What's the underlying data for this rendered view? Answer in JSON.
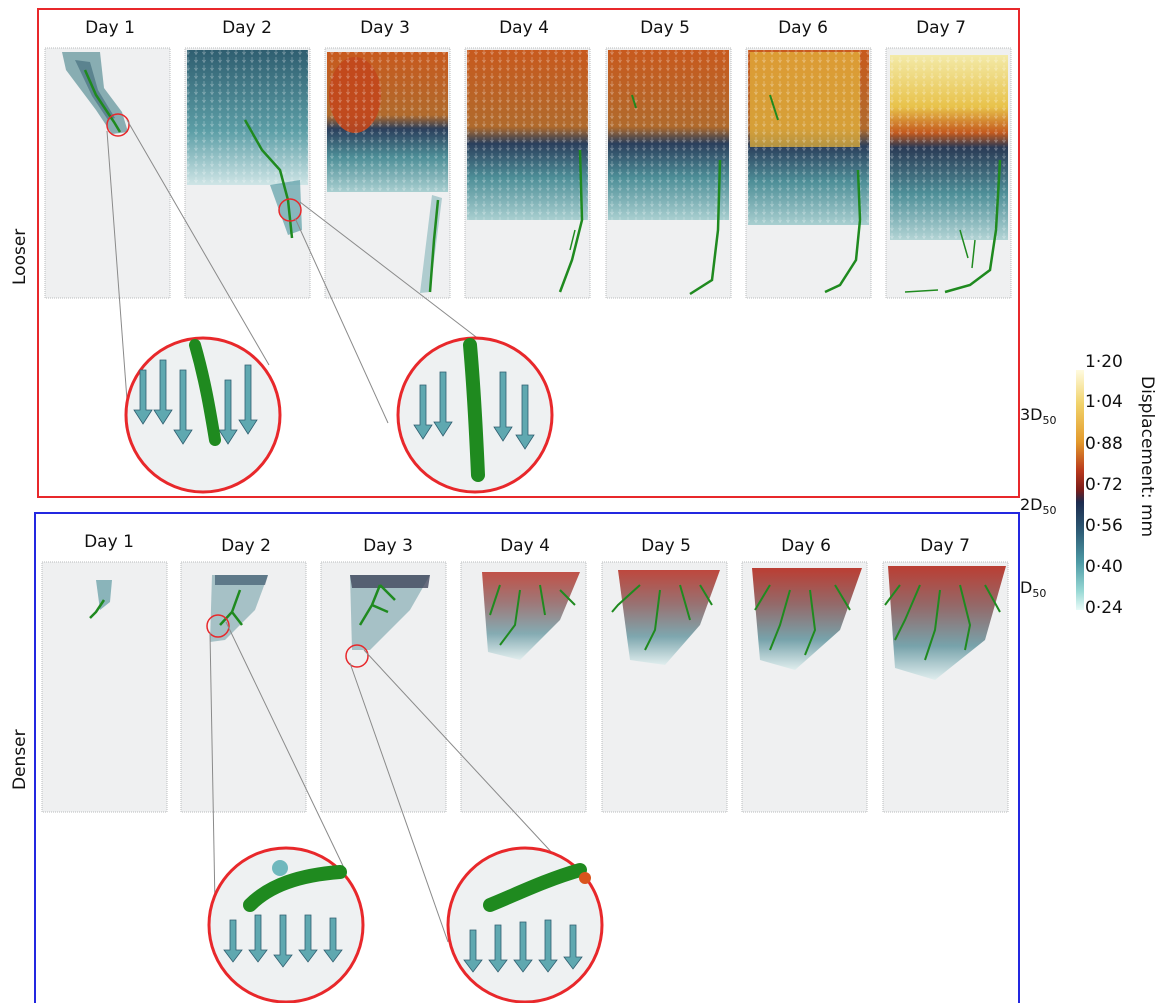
{
  "rows": [
    {
      "label": "Looser",
      "frame_color": "#e8282b"
    },
    {
      "label": "Denser",
      "frame_color": "#2328e0"
    }
  ],
  "days": [
    "Day 1",
    "Day 2",
    "Day 3",
    "Day 4",
    "Day 5",
    "Day 6",
    "Day 7"
  ],
  "colorbar": {
    "title": "Displacement: mm",
    "ticks": [
      "1·20",
      "1·04",
      "0·88",
      "0·72",
      "0·56",
      "0·40",
      "0·24"
    ],
    "reference_labels": [
      {
        "base": "3D",
        "sub": "50"
      },
      {
        "base": "2D",
        "sub": "50"
      },
      {
        "base": "D",
        "sub": "50"
      }
    ]
  },
  "colors": {
    "root": "#1f8a1f",
    "callout": "#e8282b",
    "panel_bg": "#eff0f1",
    "low": "#4d9aa5",
    "mid": "#1c2b4e",
    "high": "#d9731d",
    "max": "#f1e27a"
  }
}
